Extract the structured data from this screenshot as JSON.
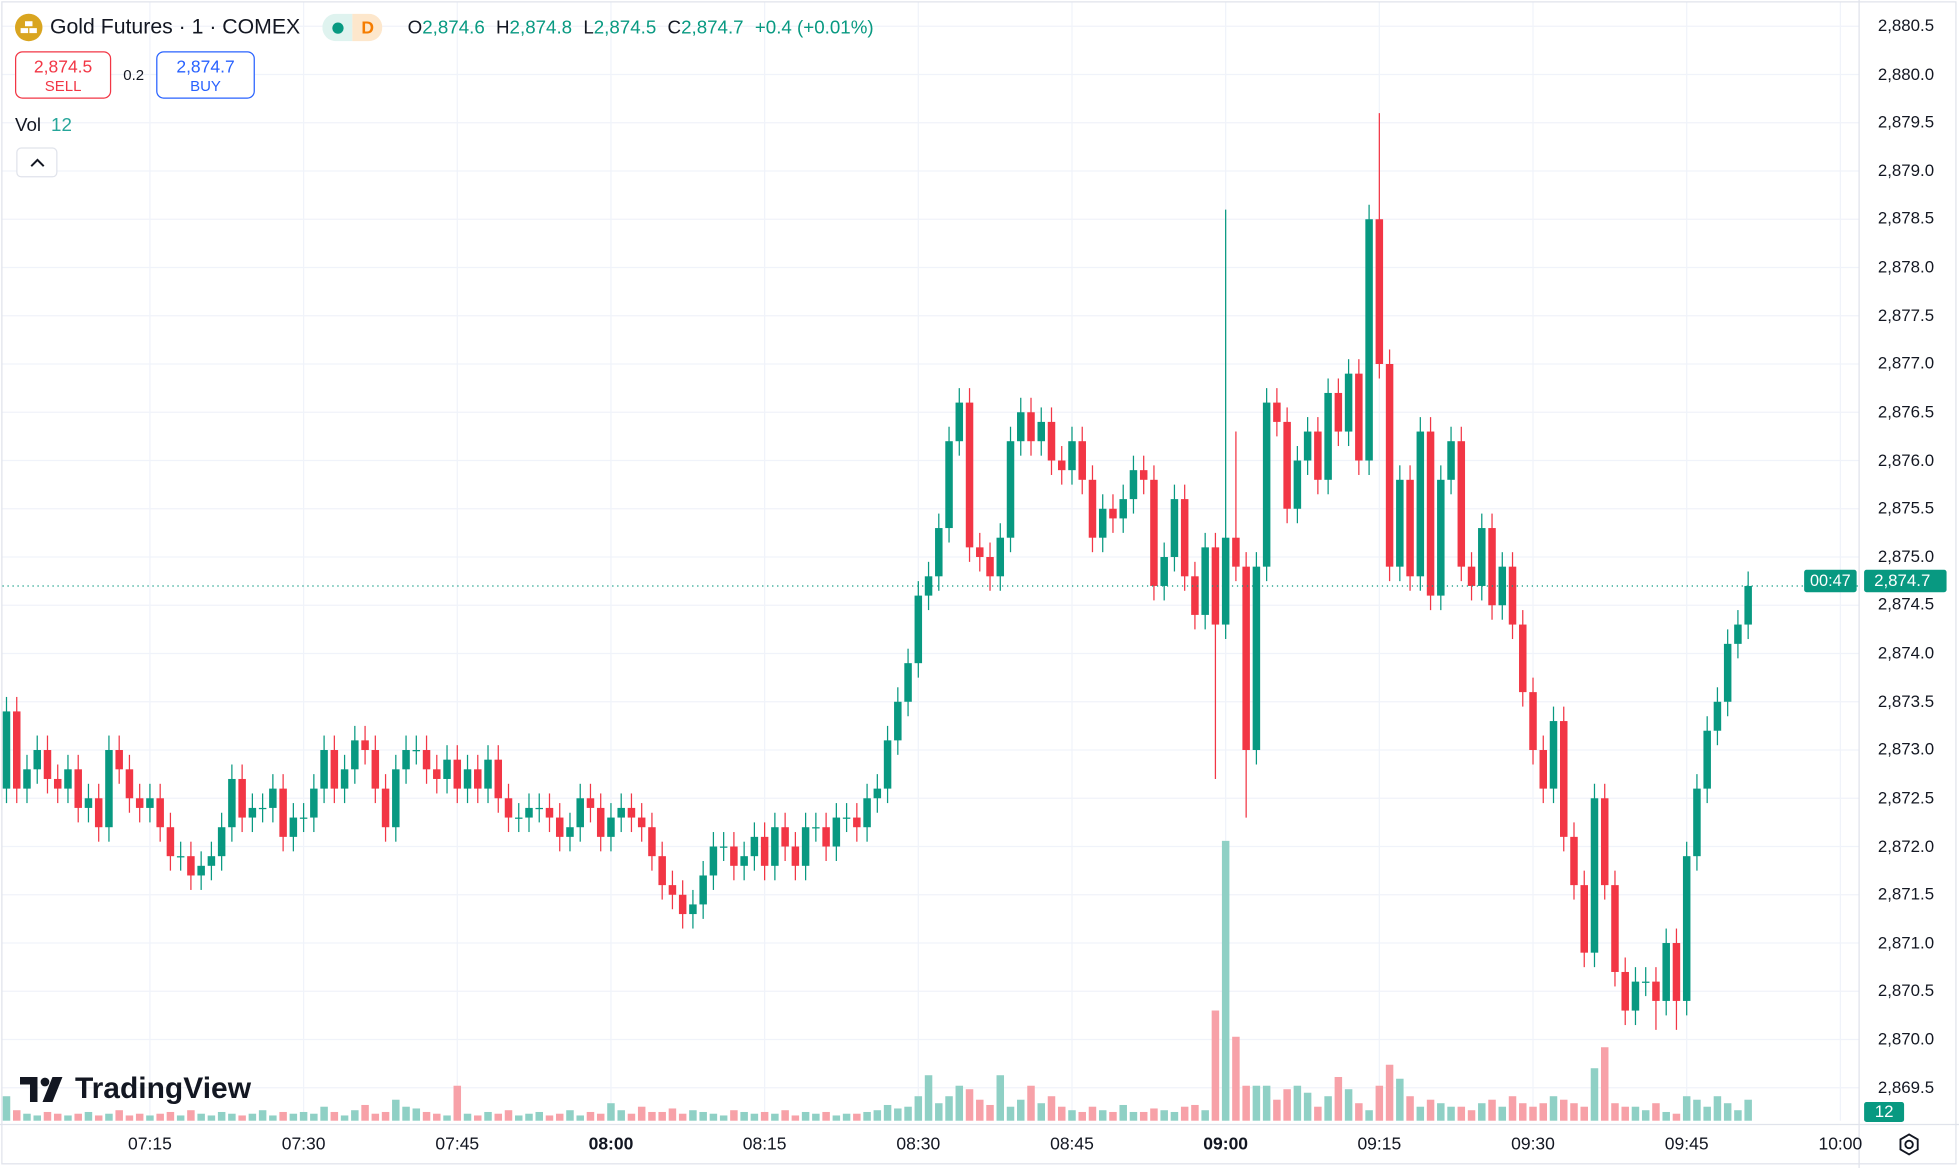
{
  "header": {
    "title": "Gold Futures · 1 · COMEX",
    "status_letter": "D",
    "ohlc": [
      {
        "k": "O",
        "v": "2,874.6"
      },
      {
        "k": "H",
        "v": "2,874.8"
      },
      {
        "k": "L",
        "v": "2,874.5"
      },
      {
        "k": "C",
        "v": "2,874.7"
      }
    ],
    "change": "+0.4 (+0.01%)"
  },
  "trade": {
    "sell_price": "2,874.5",
    "sell_label": "SELL",
    "spread": "0.2",
    "buy_price": "2,874.7",
    "buy_label": "BUY"
  },
  "volume_legend": {
    "label": "Vol",
    "value": "12"
  },
  "current": {
    "price": 2874.7,
    "price_label": "2,874.7",
    "countdown": "00:47",
    "volume_label": "12"
  },
  "branding": {
    "logo_text": "TradingView"
  },
  "colors": {
    "up": "#089981",
    "down": "#F23645",
    "up_vol": "#8fd0c5",
    "down_vol": "#f7a1a8",
    "grid": "#f0f3fa"
  },
  "price_axis": [
    "2,880.5",
    "2,880.0",
    "2,879.5",
    "2,879.0",
    "2,878.5",
    "2,878.0",
    "2,877.5",
    "2,877.0",
    "2,876.5",
    "2,876.0",
    "2,875.5",
    "2,875.0",
    "2,874.5",
    "2,874.0",
    "2,873.5",
    "2,873.0",
    "2,872.5",
    "2,872.0",
    "2,871.5",
    "2,871.0",
    "2,870.5",
    "2,870.0",
    "2,869.5"
  ],
  "time_axis": [
    {
      "t": "07:15",
      "bold": false
    },
    {
      "t": "07:30",
      "bold": false
    },
    {
      "t": "07:45",
      "bold": false
    },
    {
      "t": "08:00",
      "bold": true
    },
    {
      "t": "08:15",
      "bold": false
    },
    {
      "t": "08:30",
      "bold": false
    },
    {
      "t": "08:45",
      "bold": false
    },
    {
      "t": "09:00",
      "bold": true
    },
    {
      "t": "09:15",
      "bold": false
    },
    {
      "t": "09:30",
      "bold": false
    },
    {
      "t": "09:45",
      "bold": false
    },
    {
      "t": "10:00",
      "bold": false
    }
  ],
  "chart_data": {
    "type": "candlestick",
    "interval_minutes": 1,
    "first_bar_time": "07:01",
    "first_open": 2872.6,
    "ylim": [
      2869.3,
      2880.6
    ],
    "closes": [
      2873.4,
      2872.6,
      2872.8,
      2873.0,
      2872.7,
      2872.6,
      2872.8,
      2872.4,
      2872.5,
      2872.2,
      2873.0,
      2872.8,
      2872.5,
      2872.4,
      2872.5,
      2872.2,
      2871.9,
      2871.9,
      2871.7,
      2871.8,
      2871.9,
      2872.2,
      2872.7,
      2872.3,
      2872.4,
      2872.4,
      2872.6,
      2872.1,
      2872.3,
      2872.3,
      2872.6,
      2873.0,
      2872.6,
      2872.8,
      2873.1,
      2873.0,
      2872.6,
      2872.2,
      2872.8,
      2873.0,
      2873.0,
      2872.8,
      2872.7,
      2872.9,
      2872.6,
      2872.8,
      2872.6,
      2872.9,
      2872.5,
      2872.3,
      2872.3,
      2872.4,
      2872.4,
      2872.3,
      2872.1,
      2872.2,
      2872.5,
      2872.4,
      2872.1,
      2872.3,
      2872.4,
      2872.3,
      2872.2,
      2871.9,
      2871.6,
      2871.5,
      2871.3,
      2871.4,
      2871.7,
      2872.0,
      2872.0,
      2871.8,
      2871.9,
      2872.1,
      2871.8,
      2872.2,
      2872.0,
      2871.8,
      2872.2,
      2872.2,
      2872.0,
      2872.3,
      2872.3,
      2872.2,
      2872.5,
      2872.6,
      2873.1,
      2873.5,
      2873.9,
      2874.6,
      2874.8,
      2875.3,
      2876.2,
      2876.6,
      2875.1,
      2875.0,
      2874.8,
      2875.2,
      2876.2,
      2876.5,
      2876.2,
      2876.4,
      2876.0,
      2875.9,
      2876.2,
      2875.8,
      2875.2,
      2875.5,
      2875.4,
      2875.6,
      2875.9,
      2875.8,
      2874.7,
      2875.0,
      2875.6,
      2874.8,
      2874.4,
      2875.1,
      2874.3,
      2875.2,
      2874.9,
      2873.0,
      2874.9,
      2876.6,
      2876.4,
      2875.5,
      2876.0,
      2876.3,
      2875.8,
      2876.7,
      2876.3,
      2876.9,
      2876.0,
      2878.5,
      2877.0,
      2874.9,
      2875.8,
      2874.8,
      2876.3,
      2874.6,
      2875.8,
      2876.2,
      2874.9,
      2874.7,
      2875.3,
      2874.5,
      2874.9,
      2874.3,
      2873.6,
      2873.0,
      2872.6,
      2873.3,
      2872.1,
      2871.6,
      2870.9,
      2872.5,
      2871.6,
      2870.7,
      2870.3,
      2870.6,
      2870.6,
      2870.4,
      2871.0,
      2870.4,
      2871.9,
      2872.6,
      2873.2,
      2873.5,
      2874.1,
      2874.3,
      2874.7
    ],
    "extremes": {
      "08:59": {
        "l": 2872.7
      },
      "09:00": {
        "h": 2878.6
      },
      "09:01": {
        "h": 2876.3
      },
      "09:02": {
        "l": 2872.3
      },
      "09:15": {
        "h": 2879.6
      },
      "09:42": {
        "l": 2870.1
      },
      "09:44": {
        "l": 2870.1
      }
    },
    "volumes": [
      14,
      6,
      4,
      3,
      5,
      4,
      3,
      4,
      5,
      3,
      4,
      6,
      3,
      4,
      3,
      4,
      5,
      3,
      6,
      4,
      3,
      5,
      4,
      3,
      4,
      6,
      3,
      5,
      4,
      5,
      4,
      8,
      5,
      3,
      6,
      9,
      4,
      5,
      12,
      8,
      7,
      5,
      4,
      3,
      20,
      4,
      3,
      5,
      4,
      6,
      3,
      4,
      5,
      3,
      4,
      6,
      3,
      5,
      4,
      10,
      6,
      4,
      8,
      5,
      5,
      7,
      4,
      6,
      5,
      4,
      3,
      6,
      5,
      4,
      5,
      4,
      6,
      3,
      5,
      4,
      5,
      3,
      4,
      4,
      5,
      6,
      9,
      7,
      8,
      14,
      26,
      10,
      14,
      20,
      18,
      12,
      9,
      26,
      8,
      12,
      20,
      10,
      14,
      8,
      6,
      5,
      8,
      6,
      5,
      9,
      5,
      5,
      7,
      6,
      5,
      8,
      9,
      6,
      63,
      160,
      48,
      20,
      20,
      20,
      12,
      18,
      20,
      16,
      8,
      14,
      25,
      18,
      10,
      6,
      20,
      32,
      24,
      14,
      8,
      12,
      10,
      8,
      8,
      6,
      10,
      12,
      8,
      14,
      10,
      8,
      10,
      14,
      12,
      10,
      8,
      30,
      42,
      10,
      8,
      8,
      6,
      10,
      5,
      4,
      14,
      12,
      8,
      14,
      10,
      6,
      12
    ]
  }
}
